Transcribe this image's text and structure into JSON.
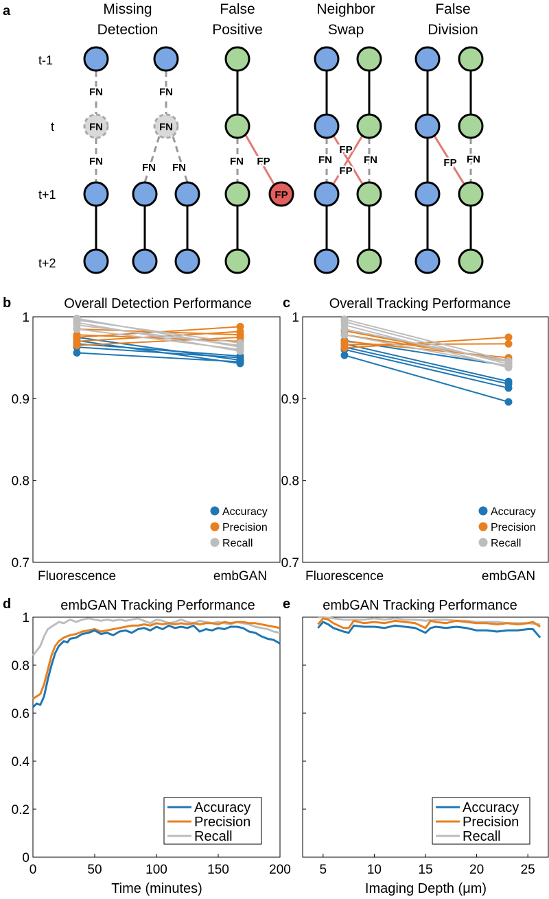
{
  "colors": {
    "blue": "#7aa6e3",
    "green": "#a8d69a",
    "red": "#e2605c",
    "ghost": "#d9d9d9",
    "accuracy": "#1f77b4",
    "precision": "#e8801f",
    "recall": "#bdbdbd",
    "fp_line": "#e07a74"
  },
  "panel_labels": {
    "a": "a",
    "b": "b",
    "c": "c",
    "d": "d",
    "e": "e"
  },
  "diagram": {
    "rows": [
      "t-1",
      "t",
      "t+1",
      "t+2"
    ],
    "titles": [
      {
        "line1": "Missing",
        "line2": "Detection"
      },
      {
        "line1": "False",
        "line2": "Positive"
      },
      {
        "line1": "Neighbor",
        "line2": "Swap"
      },
      {
        "line1": "False",
        "line2": "Division"
      }
    ],
    "fn_label": "FN",
    "fp_label": "FP"
  },
  "chart_data": [
    {
      "id": "b",
      "type": "line",
      "title": "Overall Detection Performance",
      "categories": [
        "Fluorescence",
        "embGAN"
      ],
      "ylim": [
        0.7,
        1.0
      ],
      "yticks": [
        0.7,
        0.8,
        0.9,
        1
      ],
      "ytick_labels": [
        "0.7",
        "0.8",
        "0.9",
        "1"
      ],
      "legend_position": "bottom-right",
      "series": [
        {
          "name": "Accuracy",
          "color_key": "accuracy",
          "lines": [
            [
              0.956,
              0.945
            ],
            [
              0.963,
              0.95
            ],
            [
              0.967,
              0.952
            ],
            [
              0.971,
              0.943
            ],
            [
              0.975,
              0.947
            ]
          ]
        },
        {
          "name": "Precision",
          "color_key": "precision",
          "lines": [
            [
              0.965,
              0.975
            ],
            [
              0.97,
              0.982
            ],
            [
              0.975,
              0.988
            ],
            [
              0.978,
              0.97
            ],
            [
              0.985,
              0.978
            ]
          ]
        },
        {
          "name": "Recall",
          "color_key": "recall",
          "lines": [
            [
              0.985,
              0.96
            ],
            [
              0.99,
              0.965
            ],
            [
              0.993,
              0.958
            ],
            [
              0.996,
              0.968
            ],
            [
              0.998,
              0.963
            ]
          ]
        }
      ]
    },
    {
      "id": "c",
      "type": "line",
      "title": "Overall Tracking Performance",
      "categories": [
        "Fluorescence",
        "embGAN"
      ],
      "ylim": [
        0.7,
        1.0
      ],
      "yticks": [
        0.7,
        0.8,
        0.9,
        1
      ],
      "ytick_labels": [
        "0.7",
        "0.8",
        "0.9",
        "1"
      ],
      "legend_position": "bottom-right",
      "series": [
        {
          "name": "Accuracy",
          "color_key": "accuracy",
          "lines": [
            [
              0.953,
              0.896
            ],
            [
              0.96,
              0.913
            ],
            [
              0.963,
              0.918
            ],
            [
              0.967,
              0.921
            ],
            [
              0.971,
              0.94
            ]
          ]
        },
        {
          "name": "Precision",
          "color_key": "precision",
          "lines": [
            [
              0.962,
              0.975
            ],
            [
              0.966,
              0.967
            ],
            [
              0.97,
              0.95
            ],
            [
              0.978,
              0.947
            ],
            [
              0.983,
              0.945
            ]
          ]
        },
        {
          "name": "Recall",
          "color_key": "recall",
          "lines": [
            [
              0.978,
              0.94
            ],
            [
              0.985,
              0.945
            ],
            [
              0.99,
              0.938
            ],
            [
              0.994,
              0.942
            ],
            [
              0.997,
              0.946
            ]
          ]
        }
      ]
    },
    {
      "id": "d",
      "type": "line",
      "title": "embGAN Tracking Performance",
      "xlabel": "Time (minutes)",
      "xlim": [
        0,
        200
      ],
      "xticks": [
        0,
        50,
        100,
        150,
        200
      ],
      "ylim": [
        0,
        1
      ],
      "yticks": [
        0,
        0.2,
        0.4,
        0.6,
        0.8,
        1
      ],
      "ytick_labels": [
        "0",
        "0.2",
        "0.4",
        "0.6",
        "0.8",
        "1"
      ],
      "legend_position": "bottom-right",
      "series": [
        {
          "name": "Accuracy",
          "color_key": "accuracy",
          "x": [
            0,
            3,
            6,
            9,
            12,
            15,
            18,
            21,
            25,
            28,
            30,
            35,
            40,
            45,
            50,
            55,
            60,
            65,
            70,
            75,
            80,
            85,
            90,
            95,
            100,
            105,
            110,
            115,
            120,
            125,
            130,
            135,
            140,
            145,
            150,
            155,
            160,
            165,
            170,
            175,
            180,
            185,
            190,
            195,
            200
          ],
          "y": [
            0.625,
            0.64,
            0.635,
            0.67,
            0.74,
            0.8,
            0.85,
            0.88,
            0.9,
            0.895,
            0.91,
            0.915,
            0.93,
            0.935,
            0.945,
            0.93,
            0.935,
            0.925,
            0.94,
            0.945,
            0.935,
            0.95,
            0.955,
            0.945,
            0.96,
            0.95,
            0.965,
            0.955,
            0.96,
            0.955,
            0.965,
            0.94,
            0.95,
            0.945,
            0.955,
            0.95,
            0.96,
            0.96,
            0.955,
            0.94,
            0.935,
            0.92,
            0.91,
            0.905,
            0.89
          ]
        },
        {
          "name": "Precision",
          "color_key": "precision",
          "x": [
            0,
            3,
            6,
            9,
            12,
            15,
            18,
            21,
            25,
            30,
            35,
            40,
            45,
            50,
            55,
            60,
            65,
            70,
            75,
            80,
            85,
            90,
            95,
            100,
            105,
            110,
            115,
            120,
            125,
            130,
            135,
            140,
            145,
            150,
            155,
            160,
            165,
            170,
            175,
            180,
            185,
            190,
            195,
            200
          ],
          "y": [
            0.66,
            0.67,
            0.68,
            0.72,
            0.78,
            0.84,
            0.88,
            0.9,
            0.915,
            0.925,
            0.93,
            0.94,
            0.945,
            0.95,
            0.94,
            0.945,
            0.95,
            0.955,
            0.96,
            0.965,
            0.965,
            0.97,
            0.965,
            0.975,
            0.97,
            0.975,
            0.97,
            0.975,
            0.97,
            0.975,
            0.97,
            0.975,
            0.975,
            0.97,
            0.98,
            0.975,
            0.98,
            0.98,
            0.975,
            0.975,
            0.97,
            0.965,
            0.96,
            0.955
          ]
        },
        {
          "name": "Recall",
          "color_key": "recall",
          "x": [
            0,
            3,
            6,
            9,
            12,
            15,
            18,
            21,
            25,
            30,
            35,
            40,
            45,
            50,
            55,
            60,
            65,
            70,
            75,
            80,
            85,
            90,
            95,
            100,
            105,
            110,
            115,
            120,
            125,
            130,
            135,
            140,
            145,
            150,
            155,
            160,
            165,
            170,
            175,
            180,
            185,
            190,
            195,
            200
          ],
          "y": [
            0.84,
            0.86,
            0.88,
            0.92,
            0.95,
            0.96,
            0.97,
            0.98,
            0.975,
            0.99,
            0.98,
            0.99,
            0.995,
            0.99,
            0.985,
            0.99,
            0.985,
            0.99,
            0.985,
            0.99,
            0.995,
            0.985,
            0.975,
            0.99,
            0.985,
            0.975,
            0.98,
            0.99,
            0.98,
            0.975,
            0.985,
            0.98,
            0.975,
            0.98,
            0.975,
            0.97,
            0.98,
            0.975,
            0.97,
            0.96,
            0.955,
            0.95,
            0.94,
            0.935
          ]
        }
      ]
    },
    {
      "id": "e",
      "type": "line",
      "title": "embGAN Tracking Performance",
      "xlabel": "Imaging Depth (μm)",
      "xlim": [
        3,
        27
      ],
      "xticks": [
        5,
        10,
        15,
        20,
        25
      ],
      "ylim": [
        0,
        1
      ],
      "yticks": [
        0,
        0.2,
        0.4,
        0.6,
        0.8,
        1
      ],
      "legend_position": "bottom-right",
      "series": [
        {
          "name": "Accuracy",
          "color_key": "accuracy",
          "x": [
            4.5,
            5,
            5.5,
            6,
            7,
            7.5,
            8,
            9,
            10,
            11,
            12,
            13,
            14,
            15,
            15.5,
            16,
            17,
            18,
            19,
            20,
            21,
            22,
            23,
            24,
            25,
            25.5,
            26.2
          ],
          "y": [
            0.955,
            0.98,
            0.97,
            0.955,
            0.94,
            0.935,
            0.965,
            0.96,
            0.96,
            0.955,
            0.965,
            0.96,
            0.955,
            0.935,
            0.955,
            0.96,
            0.955,
            0.96,
            0.955,
            0.945,
            0.945,
            0.94,
            0.945,
            0.945,
            0.95,
            0.95,
            0.915
          ]
        },
        {
          "name": "Precision",
          "color_key": "precision",
          "x": [
            4.5,
            5,
            5.5,
            6,
            7,
            7.5,
            8,
            9,
            10,
            11,
            12,
            13,
            14,
            15,
            15.5,
            16,
            17,
            18,
            19,
            20,
            21,
            22,
            23,
            24,
            25,
            25.5,
            26.2
          ],
          "y": [
            0.97,
            0.995,
            0.99,
            0.975,
            0.955,
            0.955,
            0.985,
            0.975,
            0.98,
            0.975,
            0.985,
            0.98,
            0.975,
            0.955,
            0.985,
            0.98,
            0.975,
            0.985,
            0.98,
            0.975,
            0.975,
            0.97,
            0.975,
            0.97,
            0.975,
            0.98,
            0.96
          ]
        },
        {
          "name": "Recall",
          "color_key": "recall",
          "x": [
            4.5,
            5,
            6,
            7,
            8,
            9,
            10,
            11,
            12,
            13,
            14,
            15,
            16,
            17,
            18,
            19,
            20,
            21,
            22,
            23,
            24,
            25,
            26.2
          ],
          "y": [
            1.0,
            1.0,
            0.995,
            0.99,
            0.99,
            0.99,
            0.995,
            0.99,
            0.995,
            0.99,
            0.99,
            0.985,
            0.99,
            0.99,
            0.985,
            0.985,
            0.98,
            0.98,
            0.98,
            0.975,
            0.975,
            0.975,
            0.97
          ]
        }
      ]
    }
  ]
}
